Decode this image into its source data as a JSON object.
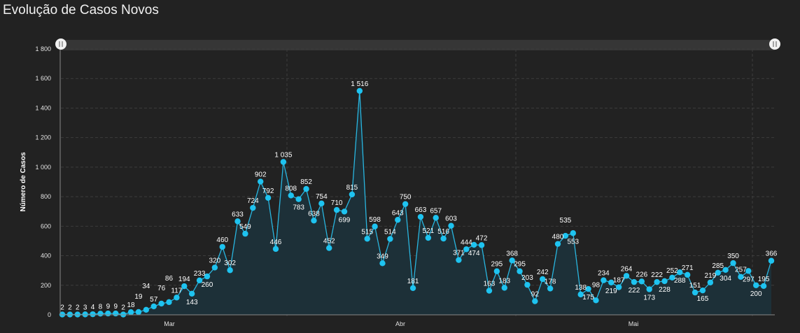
{
  "chart_data": {
    "type": "line",
    "title": "Evolução de Casos Novos",
    "xlabel": "",
    "ylabel": "Número de Casos",
    "ylim": [
      0,
      1800
    ],
    "yticks": [
      0,
      200,
      400,
      600,
      800,
      1000,
      1200,
      1400,
      1600,
      1800
    ],
    "ytick_labels": [
      "0",
      "200",
      "400",
      "600",
      "800",
      "1 000",
      "1 200",
      "1 400",
      "1 600",
      "1 800"
    ],
    "month_labels": [
      "Mar",
      "Abr",
      "Mai"
    ],
    "grid": true,
    "values": [
      2,
      2,
      2,
      3,
      4,
      8,
      9,
      9,
      2,
      18,
      19,
      34,
      57,
      76,
      86,
      117,
      194,
      143,
      233,
      260,
      320,
      460,
      302,
      633,
      549,
      724,
      902,
      792,
      446,
      1035,
      808,
      783,
      852,
      638,
      754,
      452,
      710,
      699,
      815,
      1516,
      515,
      598,
      349,
      514,
      643,
      750,
      181,
      663,
      521,
      657,
      516,
      603,
      371,
      444,
      474,
      472,
      163,
      295,
      183,
      368,
      295,
      203,
      92,
      242,
      178,
      480,
      535,
      553,
      138,
      175,
      98,
      234,
      219,
      187,
      264,
      222,
      226,
      173,
      222,
      228,
      252,
      288,
      271,
      151,
      165,
      219,
      285,
      304,
      350,
      257,
      297,
      200,
      195,
      366
    ],
    "colors": {
      "line": "#29b6e0",
      "point": "#1ec3f0",
      "area": "#1d3038",
      "background": "#222222"
    }
  }
}
